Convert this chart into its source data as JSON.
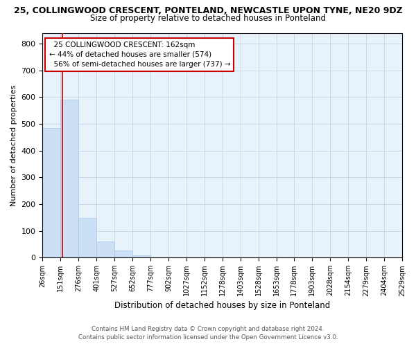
{
  "title_line1": "25, COLLINGWOOD CRESCENT, PONTELAND, NEWCASTLE UPON TYNE, NE20 9DZ",
  "title_line2": "Size of property relative to detached houses in Ponteland",
  "xlabel": "Distribution of detached houses by size in Ponteland",
  "ylabel": "Number of detached properties",
  "footer_line1": "Contains HM Land Registry data © Crown copyright and database right 2024.",
  "footer_line2": "Contains public sector information licensed under the Open Government Licence v3.0.",
  "bar_edges": [
    26,
    151,
    276,
    401,
    527,
    652,
    777,
    902,
    1027,
    1152,
    1278,
    1403,
    1528,
    1653,
    1778,
    1903,
    2028,
    2154,
    2279,
    2404,
    2529
  ],
  "bar_heights": [
    484,
    591,
    149,
    61,
    26,
    9,
    0,
    0,
    0,
    0,
    0,
    0,
    0,
    0,
    0,
    0,
    0,
    0,
    0,
    0
  ],
  "bar_color": "#cce0f5",
  "bar_edge_color": "#a8c8e8",
  "grid_color": "#c8d8ea",
  "bg_color": "#e8f2fa",
  "property_size": 162,
  "property_label": "25 COLLINGWOOD CRESCENT: 162sqm",
  "pct_smaller": 44,
  "count_smaller": 574,
  "pct_larger": 56,
  "count_larger": 737,
  "vline_color": "#cc0000",
  "annotation_edge_color": "#cc0000",
  "ylim": [
    0,
    840
  ],
  "yticks": [
    0,
    100,
    200,
    300,
    400,
    500,
    600,
    700,
    800
  ]
}
